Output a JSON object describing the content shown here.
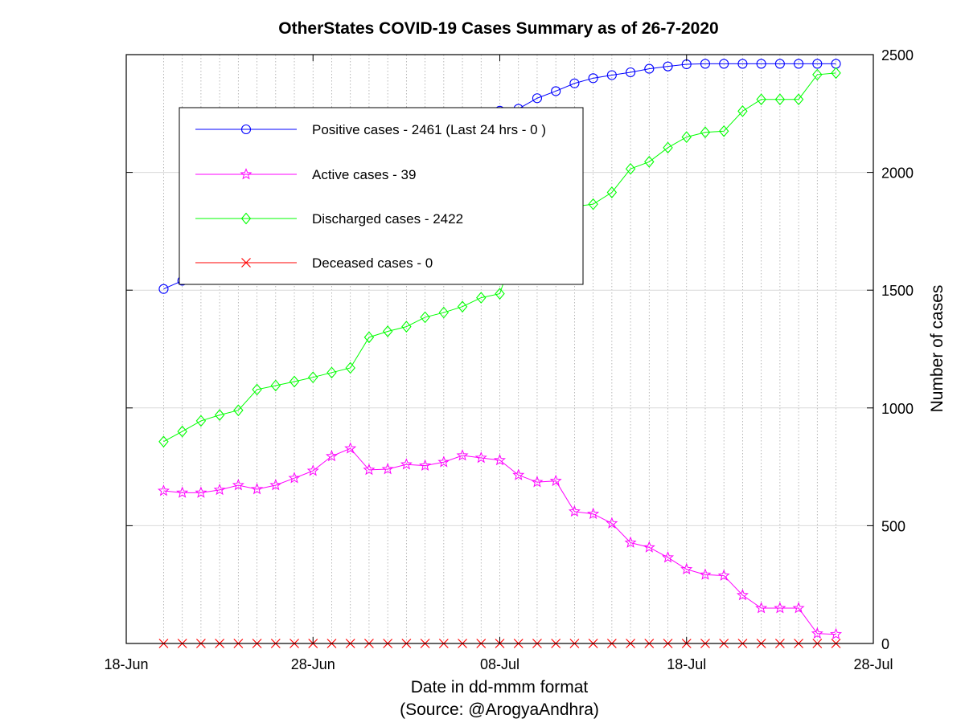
{
  "chart_data": {
    "type": "line",
    "title": "OtherStates COVID-19 Cases Summary as of 26-7-2020",
    "xlabel": "Date in dd-mmm format",
    "xlabel_source": "(Source: @ArogyaAndhra)",
    "ylabel": "Number of cases",
    "x_ticks": [
      "18-Jun",
      "28-Jun",
      "08-Jul",
      "18-Jul",
      "28-Jul"
    ],
    "y_ticks": [
      "0",
      "500",
      "1000",
      "1500",
      "2000",
      "2500"
    ],
    "xlim": [
      "2020-06-18",
      "2020-07-28"
    ],
    "ylim": [
      0,
      2500
    ],
    "y_axis_side": "right",
    "grid": true,
    "legend_position": "top-left",
    "x": [
      "2020-06-20",
      "2020-06-21",
      "2020-06-22",
      "2020-06-23",
      "2020-06-24",
      "2020-06-25",
      "2020-06-26",
      "2020-06-27",
      "2020-06-28",
      "2020-06-29",
      "2020-06-30",
      "2020-07-01",
      "2020-07-02",
      "2020-07-03",
      "2020-07-04",
      "2020-07-05",
      "2020-07-06",
      "2020-07-07",
      "2020-07-08",
      "2020-07-09",
      "2020-07-10",
      "2020-07-11",
      "2020-07-12",
      "2020-07-13",
      "2020-07-14",
      "2020-07-15",
      "2020-07-16",
      "2020-07-17",
      "2020-07-18",
      "2020-07-19",
      "2020-07-20",
      "2020-07-21",
      "2020-07-22",
      "2020-07-23",
      "2020-07-24",
      "2020-07-25",
      "2020-07-26"
    ],
    "series": [
      {
        "name": "Positive cases - 2461 (Last 24 hrs - 0 )",
        "color": "#0000ff",
        "marker": "circle",
        "values": [
          1505,
          1540,
          1570,
          1600,
          1640,
          1700,
          1750,
          1800,
          1850,
          1900,
          1950,
          2010,
          2050,
          2090,
          2130,
          2170,
          2200,
          2230,
          2262,
          2270,
          2315,
          2345,
          2378,
          2400,
          2413,
          2425,
          2440,
          2450,
          2459,
          2461,
          2461,
          2461,
          2461,
          2461,
          2461,
          2461,
          2461
        ]
      },
      {
        "name": "Active cases - 39",
        "color": "#ff00ff",
        "marker": "star",
        "values": [
          648,
          640,
          640,
          652,
          672,
          655,
          672,
          702,
          733,
          795,
          828,
          737,
          740,
          760,
          755,
          770,
          798,
          788,
          778,
          715,
          685,
          690,
          560,
          550,
          510,
          428,
          408,
          365,
          315,
          292,
          288,
          205,
          150,
          150,
          150,
          42,
          39
        ]
      },
      {
        "name": "Discharged cases - 2422",
        "color": "#00ff00",
        "marker": "diamond",
        "values": [
          857,
          900,
          945,
          970,
          990,
          1078,
          1095,
          1112,
          1130,
          1150,
          1170,
          1300,
          1325,
          1345,
          1385,
          1405,
          1430,
          1468,
          1485,
          1720,
          1770,
          1820,
          1855,
          1865,
          1915,
          2015,
          2045,
          2105,
          2150,
          2170,
          2175,
          2260,
          2310,
          2310,
          2310,
          2415,
          2422
        ]
      },
      {
        "name": "Deceased cases - 0",
        "color": "#ff0000",
        "marker": "x",
        "values": [
          0,
          0,
          0,
          0,
          0,
          0,
          0,
          0,
          0,
          0,
          0,
          0,
          0,
          0,
          0,
          0,
          0,
          0,
          0,
          0,
          0,
          0,
          0,
          0,
          0,
          0,
          0,
          0,
          0,
          0,
          0,
          0,
          0,
          0,
          0,
          0,
          0
        ]
      }
    ]
  }
}
